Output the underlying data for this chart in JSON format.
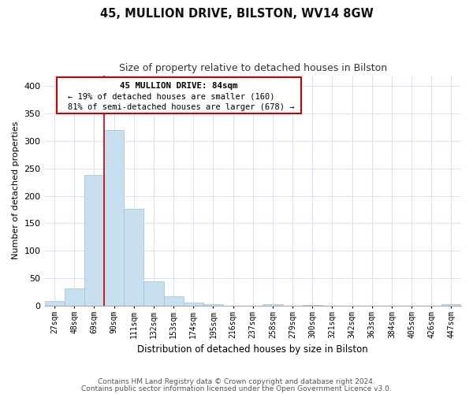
{
  "title": "45, MULLION DRIVE, BILSTON, WV14 8GW",
  "subtitle": "Size of property relative to detached houses in Bilston",
  "xlabel": "Distribution of detached houses by size in Bilston",
  "ylabel": "Number of detached properties",
  "categories": [
    "27sqm",
    "48sqm",
    "69sqm",
    "90sqm",
    "111sqm",
    "132sqm",
    "153sqm",
    "174sqm",
    "195sqm",
    "216sqm",
    "237sqm",
    "258sqm",
    "279sqm",
    "300sqm",
    "321sqm",
    "342sqm",
    "363sqm",
    "384sqm",
    "405sqm",
    "426sqm",
    "447sqm"
  ],
  "values": [
    8,
    32,
    238,
    320,
    176,
    45,
    17,
    5,
    2,
    0,
    0,
    3,
    0,
    1,
    0,
    0,
    0,
    0,
    0,
    0,
    2
  ],
  "bar_color": "#c8dff0",
  "bar_edge_color": "#9bbfd8",
  "vline_color": "#cc0000",
  "vline_pos": 2.5,
  "annotation_title": "45 MULLION DRIVE: 84sqm",
  "annotation_line1": "← 19% of detached houses are smaller (160)",
  "annotation_line2": "81% of semi-detached houses are larger (678) →",
  "annotation_box_color": "#ffffff",
  "annotation_box_edge": "#cc0000",
  "ylim": [
    0,
    420
  ],
  "yticks": [
    0,
    50,
    100,
    150,
    200,
    250,
    300,
    350,
    400
  ],
  "footnote1": "Contains HM Land Registry data © Crown copyright and database right 2024.",
  "footnote2": "Contains public sector information licensed under the Open Government Licence v3.0.",
  "bg_color": "#ffffff",
  "plot_bg_color": "#ffffff",
  "grid_color": "#d8e4f0"
}
